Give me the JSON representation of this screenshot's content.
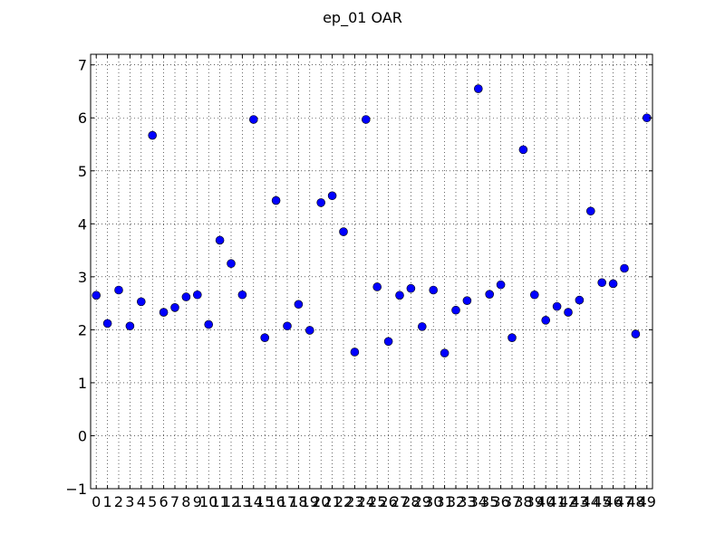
{
  "chart_data": {
    "type": "scatter",
    "title": "ep_01 OAR",
    "xlabel": "",
    "ylabel": "",
    "xlim": [
      -0.5,
      49.5
    ],
    "ylim": [
      -1,
      7.2
    ],
    "x_ticks": [
      "0",
      "1",
      "2",
      "3",
      "4",
      "5",
      "6",
      "7",
      "8",
      "9",
      "10",
      "11",
      "12",
      "13",
      "14",
      "15",
      "16",
      "17",
      "18",
      "19",
      "20",
      "21",
      "22",
      "23",
      "24",
      "25",
      "26",
      "27",
      "28",
      "29",
      "30",
      "31",
      "32",
      "33",
      "34",
      "35",
      "36",
      "37",
      "38",
      "39",
      "40",
      "41",
      "42",
      "43",
      "44",
      "45",
      "46",
      "47",
      "48",
      "49"
    ],
    "y_ticks": [
      "−1",
      "0",
      "1",
      "2",
      "3",
      "4",
      "5",
      "6",
      "7"
    ],
    "grid": true,
    "marker_color": "#0000ff",
    "x": [
      0,
      1,
      2,
      3,
      4,
      5,
      6,
      7,
      8,
      9,
      10,
      11,
      12,
      13,
      14,
      15,
      16,
      17,
      18,
      19,
      20,
      21,
      22,
      23,
      24,
      25,
      26,
      27,
      28,
      29,
      30,
      31,
      32,
      33,
      34,
      35,
      36,
      37,
      38,
      39,
      40,
      41,
      42,
      43,
      44,
      45,
      46,
      47,
      48,
      49
    ],
    "y": [
      2.65,
      2.12,
      2.75,
      2.07,
      2.53,
      5.67,
      2.33,
      2.42,
      2.62,
      2.66,
      2.1,
      3.69,
      3.25,
      2.66,
      5.97,
      1.85,
      4.44,
      2.07,
      2.48,
      1.99,
      4.4,
      4.53,
      3.85,
      1.58,
      5.97,
      2.81,
      1.78,
      2.65,
      2.78,
      2.06,
      2.75,
      1.56,
      2.37,
      2.55,
      6.55,
      2.67,
      2.85,
      1.85,
      5.4,
      2.66,
      2.18,
      2.44,
      2.33,
      2.56,
      4.24,
      2.89,
      2.87,
      3.16,
      1.92,
      6.0
    ]
  }
}
